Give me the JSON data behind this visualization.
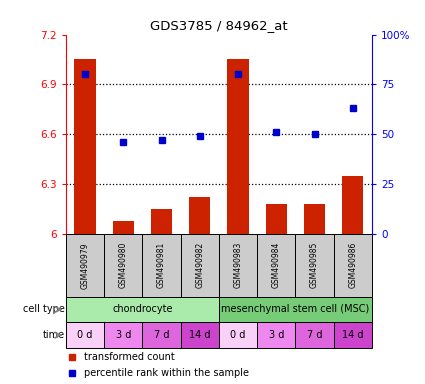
{
  "title": "GDS3785 / 84962_at",
  "samples": [
    "GSM490979",
    "GSM490980",
    "GSM490981",
    "GSM490982",
    "GSM490983",
    "GSM490984",
    "GSM490985",
    "GSM490986"
  ],
  "transformed_count": [
    7.05,
    6.08,
    6.15,
    6.22,
    7.05,
    6.18,
    6.18,
    6.35
  ],
  "percentile_rank": [
    80,
    46,
    47,
    49,
    80,
    51,
    50,
    63
  ],
  "ylim_left": [
    6.0,
    7.2
  ],
  "ylim_right": [
    0,
    100
  ],
  "yticks_left": [
    6.0,
    6.3,
    6.6,
    6.9,
    7.2
  ],
  "yticks_right": [
    0,
    25,
    50,
    75,
    100
  ],
  "ytick_labels_left": [
    "6",
    "6.3",
    "6.6",
    "6.9",
    "7.2"
  ],
  "ytick_labels_right": [
    "0",
    "25",
    "50",
    "75",
    "100%"
  ],
  "bar_color": "#cc2200",
  "dot_color": "#0000cc",
  "cell_type_groups": [
    {
      "label": "chondrocyte",
      "start": 0,
      "end": 4,
      "color": "#aaeaaa"
    },
    {
      "label": "mesenchymal stem cell (MSC)",
      "start": 4,
      "end": 8,
      "color": "#77cc77"
    }
  ],
  "time_labels": [
    "0 d",
    "3 d",
    "7 d",
    "14 d",
    "0 d",
    "3 d",
    "7 d",
    "14 d"
  ],
  "time_colors": [
    "#f8d0f8",
    "#ee88ee",
    "#dd66dd",
    "#cc44cc",
    "#f8d0f8",
    "#ee88ee",
    "#dd66dd",
    "#cc44cc"
  ],
  "legend_bar_label": "transformed count",
  "legend_dot_label": "percentile rank within the sample",
  "sample_bg_color": "#cccccc",
  "background_color": "#ffffff",
  "grid_dotted_ticks": [
    6.3,
    6.6,
    6.9
  ]
}
